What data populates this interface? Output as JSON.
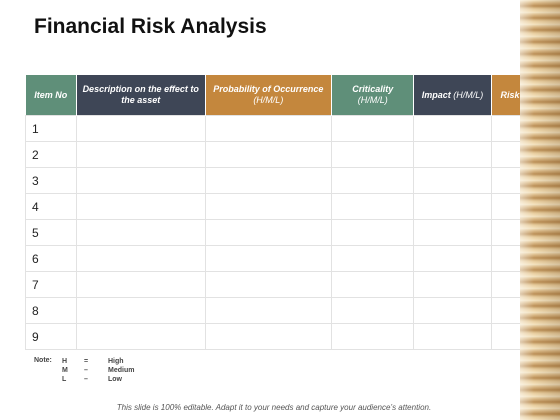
{
  "title": "Financial Risk Analysis",
  "table": {
    "headers": [
      {
        "main": "Item No",
        "sub": ""
      },
      {
        "main": "Description on the effect to the asset",
        "sub": ""
      },
      {
        "main": "Probability of Occurrence",
        "sub": "(H/M/L)"
      },
      {
        "main": "Criticality",
        "sub": "(H/M/L)"
      },
      {
        "main": "Impact",
        "sub": "(H/M/L)"
      },
      {
        "main": "Risk Rating",
        "sub": ""
      }
    ],
    "rows": [
      {
        "no": "1",
        "desc": "",
        "prob": "",
        "crit": "",
        "impact": "",
        "rating": ""
      },
      {
        "no": "2",
        "desc": "",
        "prob": "",
        "crit": "",
        "impact": "",
        "rating": ""
      },
      {
        "no": "3",
        "desc": "",
        "prob": "",
        "crit": "",
        "impact": "",
        "rating": ""
      },
      {
        "no": "4",
        "desc": "",
        "prob": "",
        "crit": "",
        "impact": "",
        "rating": ""
      },
      {
        "no": "5",
        "desc": "",
        "prob": "",
        "crit": "",
        "impact": "",
        "rating": ""
      },
      {
        "no": "6",
        "desc": "",
        "prob": "",
        "crit": "",
        "impact": "",
        "rating": ""
      },
      {
        "no": "7",
        "desc": "",
        "prob": "",
        "crit": "",
        "impact": "",
        "rating": ""
      },
      {
        "no": "8",
        "desc": "",
        "prob": "",
        "crit": "",
        "impact": "",
        "rating": ""
      },
      {
        "no": "9",
        "desc": "",
        "prob": "",
        "crit": "",
        "impact": "",
        "rating": ""
      }
    ]
  },
  "note": {
    "label": "Note:",
    "entries": [
      {
        "key": "H",
        "sep": "=",
        "value": "High"
      },
      {
        "key": "M",
        "sep": "–",
        "value": "Medium"
      },
      {
        "key": "L",
        "sep": "–",
        "value": "Low"
      }
    ]
  },
  "footer": "This slide is 100% editable. Adapt it to your needs and capture your audience’s attention.",
  "colors": {
    "green": "#5f8f79",
    "navy": "#3e4656",
    "orange": "#c4873d"
  }
}
